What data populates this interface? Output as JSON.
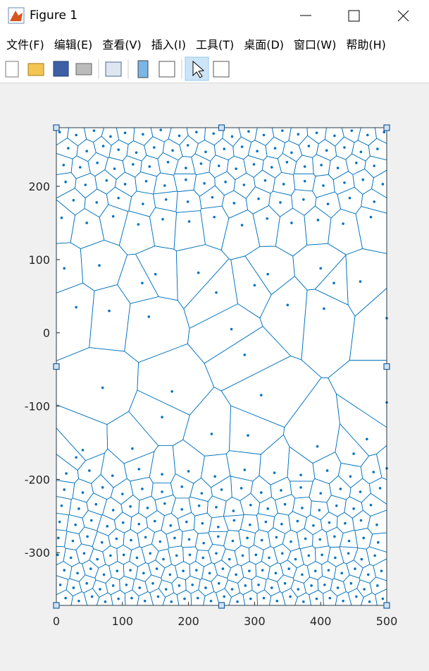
{
  "window": {
    "title": "Figure 1",
    "menu": [
      "文件(F)",
      "编辑(E)",
      "查看(V)",
      "插入(I)",
      "工具(T)",
      "桌面(D)",
      "窗口(W)",
      "帮助(H)"
    ]
  },
  "chart_data": {
    "type": "voronoi",
    "color": "#0072bd",
    "xlim": [
      0,
      500
    ],
    "ylim": [
      -372,
      280
    ],
    "xticks": [
      0,
      100,
      200,
      300,
      400,
      500
    ],
    "yticks": [
      -300,
      -200,
      -100,
      0,
      100,
      200
    ],
    "x": [
      5,
      30,
      57,
      82,
      104,
      131,
      158,
      186,
      212,
      238,
      266,
      291,
      314,
      342,
      366,
      394,
      421,
      447,
      471,
      496,
      18,
      46,
      71,
      94,
      121,
      148,
      176,
      199,
      226,
      254,
      281,
      304,
      331,
      356,
      382,
      409,
      436,
      461,
      486,
      11,
      36,
      62,
      88,
      116,
      141,
      169,
      196,
      219,
      246,
      272,
      299,
      326,
      349,
      376,
      401,
      426,
      454,
      481,
      14,
      44,
      76,
      104,
      136,
      164,
      196,
      224,
      256,
      284,
      316,
      344,
      376,
      404,
      436,
      464,
      494,
      26,
      61,
      94,
      131,
      166,
      199,
      236,
      269,
      306,
      339,
      374,
      411,
      444,
      481,
      8,
      46,
      86,
      124,
      161,
      201,
      239,
      281,
      319,
      356,
      396,
      434,
      476,
      12,
      65,
      130,
      150,
      215,
      242,
      300,
      320,
      400,
      460,
      30,
      80,
      140,
      265,
      285,
      350,
      405,
      500,
      70,
      175,
      310,
      420,
      160,
      235,
      290,
      395,
      450,
      500,
      40,
      115,
      470,
      30,
      15,
      50,
      85,
      125,
      160,
      200,
      240,
      285,
      330,
      370,
      410,
      445,
      480,
      500,
      12,
      40,
      70,
      100,
      130,
      160,
      190,
      220,
      250,
      280,
      310,
      340,
      370,
      400,
      430,
      460,
      490,
      8,
      34,
      60,
      86,
      112,
      138,
      164,
      190,
      216,
      242,
      268,
      294,
      320,
      346,
      372,
      398,
      424,
      450,
      476,
      5,
      29,
      53,
      77,
      101,
      125,
      149,
      173,
      197,
      221,
      245,
      269,
      293,
      317,
      341,
      365,
      389,
      413,
      437,
      461,
      485,
      3,
      25,
      47,
      69,
      91,
      113,
      135,
      157,
      179,
      201,
      223,
      245,
      267,
      289,
      311,
      333,
      355,
      377,
      399,
      421,
      443,
      465,
      487,
      2,
      22,
      42,
      62,
      82,
      102,
      122,
      142,
      162,
      182,
      202,
      222,
      242,
      262,
      282,
      302,
      322,
      342,
      362,
      382,
      402,
      422,
      442,
      462,
      482,
      12,
      32,
      52,
      72,
      92,
      112,
      132,
      152,
      172,
      192,
      212,
      232,
      252,
      272,
      292,
      312,
      332,
      352,
      372,
      392,
      412,
      432,
      452,
      472,
      492,
      6,
      26,
      46,
      66,
      86,
      106,
      126,
      146,
      166,
      186,
      206,
      226,
      246,
      266,
      286,
      306,
      326,
      346,
      366,
      386,
      406,
      426,
      446,
      466,
      486,
      14,
      34,
      54,
      74,
      94,
      114,
      134,
      154,
      174,
      194,
      214,
      234,
      254,
      274,
      294,
      314,
      334,
      354,
      374,
      394,
      414,
      434,
      454,
      474,
      494
    ],
    "values": [
      274,
      270,
      276,
      268,
      273,
      271,
      277,
      269,
      274,
      272,
      268,
      275,
      270,
      276,
      271,
      273,
      269,
      276,
      270,
      274,
      252,
      248,
      255,
      250,
      246,
      253,
      249,
      256,
      247,
      251,
      254,
      248,
      252,
      246,
      255,
      249,
      253,
      247,
      251,
      229,
      226,
      232,
      224,
      230,
      227,
      233,
      225,
      231,
      228,
      224,
      230,
      226,
      233,
      227,
      229,
      225,
      232,
      228,
      206,
      202,
      208,
      203,
      207,
      201,
      209,
      204,
      206,
      202,
      208,
      203,
      207,
      201,
      205,
      209,
      203,
      181,
      178,
      184,
      176,
      182,
      179,
      185,
      177,
      183,
      178,
      182,
      176,
      184,
      179,
      157,
      150,
      159,
      148,
      155,
      152,
      158,
      147,
      156,
      150,
      154,
      149,
      158,
      88,
      92,
      68,
      80,
      82,
      55,
      65,
      80,
      88,
      70,
      35,
      30,
      22,
      5,
      -30,
      38,
      33,
      20,
      -75,
      -80,
      -85,
      68,
      -115,
      -138,
      -140,
      -155,
      -165,
      -95,
      -160,
      -158,
      -145,
      -170,
      -192,
      -188,
      -195,
      -186,
      -193,
      -189,
      -196,
      -187,
      -191,
      -194,
      -188,
      -196,
      -190,
      -185,
      -214,
      -218,
      -211,
      -220,
      -213,
      -217,
      -210,
      -219,
      -214,
      -212,
      -218,
      -215,
      -211,
      -219,
      -213,
      -217,
      -212,
      -236,
      -240,
      -234,
      -242,
      -237,
      -239,
      -233,
      -241,
      -236,
      -238,
      -243,
      -235,
      -240,
      -234,
      -239,
      -242,
      -236,
      -240,
      -235,
      -258,
      -262,
      -256,
      -264,
      -259,
      -261,
      -257,
      -263,
      -258,
      -260,
      -265,
      -256,
      -262,
      -258,
      -261,
      -257,
      -263,
      -259,
      -260,
      -256,
      -262,
      -280,
      -284,
      -278,
      -286,
      -281,
      -283,
      -279,
      -285,
      -280,
      -282,
      -287,
      -278,
      -284,
      -280,
      -283,
      -279,
      -285,
      -281,
      -282,
      -278,
      -284,
      -280,
      -286,
      -303,
      -307,
      -301,
      -309,
      -304,
      -303,
      -307,
      -301,
      -309,
      -304,
      -303,
      -307,
      -301,
      -309,
      -304,
      -303,
      -307,
      -301,
      -309,
      -304,
      -303,
      -307,
      -301,
      -309,
      -304,
      -324,
      -328,
      -322,
      -330,
      -325,
      -324,
      -328,
      -322,
      -330,
      -325,
      -324,
      -328,
      -322,
      -330,
      -325,
      -324,
      -328,
      -322,
      -330,
      -325,
      -324,
      -328,
      -322,
      -330,
      -325,
      -344,
      -348,
      -342,
      -350,
      -345,
      -344,
      -348,
      -342,
      -350,
      -345,
      -344,
      -348,
      -342,
      -350,
      -345,
      -344,
      -348,
      -342,
      -350,
      -345,
      -344,
      -348,
      -342,
      -350,
      -345,
      -362,
      -366,
      -360,
      -367,
      -363,
      -362,
      -366,
      -360,
      -367,
      -363,
      -362,
      -366,
      -360,
      -367,
      -363,
      -362,
      -366,
      -360,
      -367,
      -363,
      -362,
      -366,
      -360,
      -367,
      -363
    ]
  }
}
